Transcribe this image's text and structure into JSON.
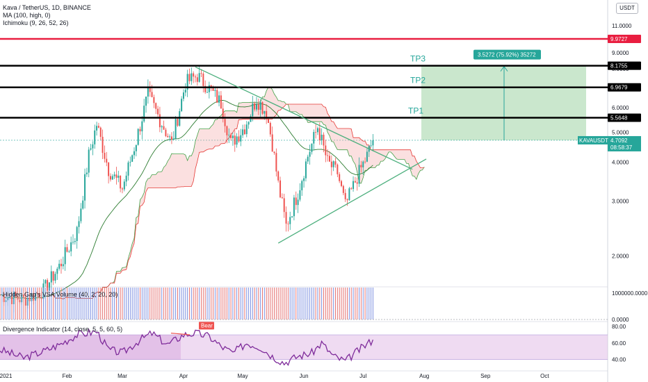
{
  "header": {
    "title": "Kava / TetherUS, 1D, BINANCE",
    "ma_legend": "MA (100, high, 0)",
    "ichimoku_legend": "Ichimoku (9, 26, 52, 26)",
    "currency": "USDT"
  },
  "volume_panel": {
    "legend": "Hidden Gap's VSA Volume (40, 2, 20, 20)"
  },
  "divergence_panel": {
    "legend": "Divergence Indicator (14, close, 5, 5, 60, 5)",
    "bear_label": "Bear"
  },
  "trade": {
    "tp3": "TP3",
    "tp2": "TP2",
    "tp1": "TP1",
    "target_label": "3.5272 (75.92%) 35272"
  },
  "price_badges": {
    "resistance": "9.9727",
    "tp3": "8.1755",
    "tp2": "6.9679",
    "tp1": "5.5648",
    "symbol": "KAVAUSDT",
    "last_price": "4.7092",
    "countdown": "08:58:37"
  },
  "colors": {
    "up": "#26a69a",
    "down": "#ef5350",
    "resistance": "#e91e40",
    "target_zone": "#9fd4a4",
    "trend": "#4caf7d",
    "osc": "#7e2b9a"
  },
  "chart_data": [
    {
      "type": "candlestick",
      "title": "Kava / TetherUS, 1D, BINANCE",
      "y_scale": "log",
      "ylim": [
        1.6,
        12.5
      ],
      "xlim": [
        "2020-12-29",
        "2021-10-28"
      ],
      "y_ticks": [
        "11.0000",
        "9.0000",
        "8.0000",
        "6.0000",
        "5.0000",
        "4.0000",
        "3.0000",
        "2.0000"
      ],
      "x_ticks": [
        "2021",
        "Feb",
        "Mar",
        "Apr",
        "May",
        "Jun",
        "Jul",
        "Aug",
        "Sep",
        "Oct"
      ],
      "key_prices": {
        "resistance": 9.9727,
        "tp3": 8.1755,
        "tp2": 6.9679,
        "tp1": 5.5648,
        "last": 4.7092
      },
      "price_path": [
        {
          "date": "2020-12-29",
          "close": 1.5
        },
        {
          "date": "2021-01-10",
          "close": 1.45
        },
        {
          "date": "2021-01-20",
          "close": 1.55
        },
        {
          "date": "2021-01-28",
          "close": 1.85
        },
        {
          "date": "2021-02-06",
          "close": 2.4
        },
        {
          "date": "2021-02-12",
          "close": 4.2
        },
        {
          "date": "2021-02-16",
          "close": 5.3
        },
        {
          "date": "2021-02-22",
          "close": 3.8
        },
        {
          "date": "2021-03-01",
          "close": 3.3
        },
        {
          "date": "2021-03-08",
          "close": 4.7
        },
        {
          "date": "2021-03-14",
          "close": 6.6
        },
        {
          "date": "2021-03-20",
          "close": 5.5
        },
        {
          "date": "2021-03-26",
          "close": 4.6
        },
        {
          "date": "2021-04-02",
          "close": 7.2
        },
        {
          "date": "2021-04-08",
          "close": 7.6
        },
        {
          "date": "2021-04-14",
          "close": 6.9
        },
        {
          "date": "2021-04-20",
          "close": 6.2
        },
        {
          "date": "2021-04-25",
          "close": 4.6
        },
        {
          "date": "2021-05-02",
          "close": 5.2
        },
        {
          "date": "2021-05-08",
          "close": 6.4
        },
        {
          "date": "2021-05-13",
          "close": 5.8
        },
        {
          "date": "2021-05-16",
          "close": 4.6
        },
        {
          "date": "2021-05-19",
          "close": 3.4
        },
        {
          "date": "2021-05-23",
          "close": 2.5
        },
        {
          "date": "2021-05-29",
          "close": 3.2
        },
        {
          "date": "2021-06-03",
          "close": 4.2
        },
        {
          "date": "2021-06-08",
          "close": 5.2
        },
        {
          "date": "2021-06-13",
          "close": 4.0
        },
        {
          "date": "2021-06-18",
          "close": 3.7
        },
        {
          "date": "2021-06-22",
          "close": 2.9
        },
        {
          "date": "2021-06-28",
          "close": 3.6
        },
        {
          "date": "2021-07-03",
          "close": 4.2
        },
        {
          "date": "2021-07-06",
          "close": 4.7092
        }
      ],
      "trendlines": [
        {
          "from": {
            "date": "2021-04-07",
            "price": 8.1
          },
          "to": {
            "date": "2021-07-26",
            "price": 3.8
          }
        },
        {
          "from": {
            "date": "2021-05-19",
            "price": 2.2
          },
          "to": {
            "date": "2021-08-02",
            "price": 4.1
          }
        }
      ]
    },
    {
      "type": "bar",
      "title": "Hidden Gap's VSA Volume (40, 2, 20, 20)",
      "y_ticks": [
        "1000000.0000",
        "0.0000"
      ]
    },
    {
      "type": "line",
      "title": "Divergence Indicator (14, close, 5, 5, 60, 5)",
      "ylim": [
        28,
        86
      ],
      "y_ticks": [
        "80.00",
        "60.00",
        "40.00"
      ],
      "x": [
        "2020-12-29",
        "2021-01-10",
        "2021-01-20",
        "2021-01-28",
        "2021-02-06",
        "2021-02-16",
        "2021-02-22",
        "2021-03-01",
        "2021-03-10",
        "2021-03-16",
        "2021-03-24",
        "2021-04-01",
        "2021-04-07",
        "2021-04-14",
        "2021-04-20",
        "2021-04-26",
        "2021-05-03",
        "2021-05-10",
        "2021-05-16",
        "2021-05-22",
        "2021-05-29",
        "2021-06-05",
        "2021-06-10",
        "2021-06-16",
        "2021-06-22",
        "2021-06-28",
        "2021-07-06"
      ],
      "values": [
        52,
        42,
        50,
        58,
        70,
        74,
        52,
        48,
        64,
        72,
        58,
        70,
        72,
        68,
        56,
        48,
        60,
        55,
        44,
        36,
        44,
        48,
        60,
        44,
        38,
        50,
        64
      ],
      "band": [
        40,
        70
      ],
      "annotations": [
        "Bear"
      ]
    }
  ]
}
